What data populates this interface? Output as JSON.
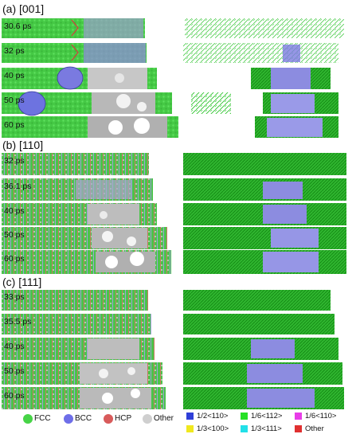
{
  "sections": [
    {
      "label": "(a) [001]",
      "times": [
        "30.6 ps",
        "32 ps",
        "40 ps",
        "50 ps",
        "60 ps"
      ]
    },
    {
      "label": "(b) [110]",
      "times": [
        "32 ps",
        "36.1 ps",
        "40 ps",
        "50 ps",
        "60 ps"
      ]
    },
    {
      "label": "(c) [111]",
      "times": [
        "33 ps",
        "35.5 ps",
        "40 ps",
        "50 ps",
        "60 ps"
      ]
    }
  ],
  "structure_legend": [
    {
      "name": "FCC",
      "color": "#47d447"
    },
    {
      "name": "BCC",
      "color": "#6e6ee8"
    },
    {
      "name": "HCP",
      "color": "#d85b5b"
    },
    {
      "name": "Other",
      "color": "#cfcfcf"
    }
  ],
  "dislocation_legend": [
    {
      "name": "1/2<110>",
      "color": "#2f3fd8"
    },
    {
      "name": "1/6<112>",
      "color": "#26e026"
    },
    {
      "name": "1/6<110>",
      "color": "#e83ce8"
    },
    {
      "name": "1/3<100>",
      "color": "#f0e81e"
    },
    {
      "name": "1/3<111>",
      "color": "#22e0e8"
    },
    {
      "name": "Other",
      "color": "#e03030"
    }
  ]
}
